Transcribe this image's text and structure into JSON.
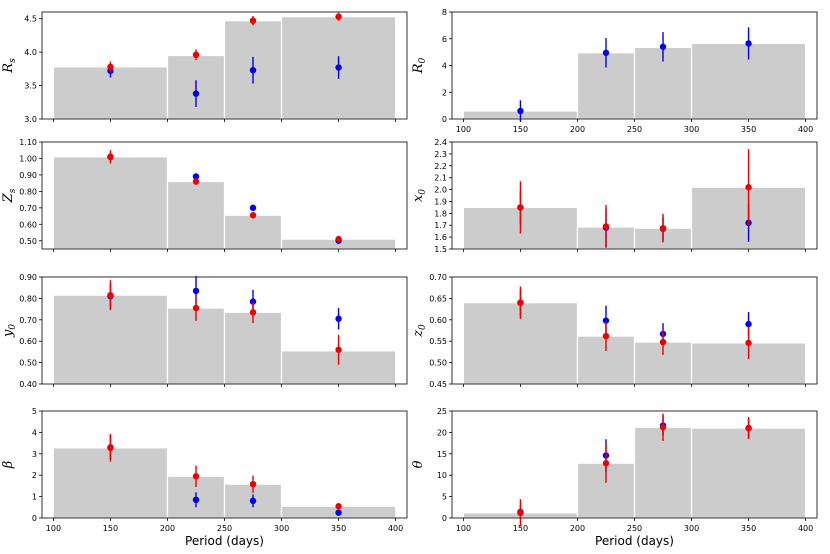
{
  "chart_data": [
    {
      "type": "bar",
      "ylabel": "R",
      "ylabel_sub": "s",
      "ylim": [
        3.0,
        4.6
      ],
      "yticks": [
        3.0,
        3.5,
        4.0,
        4.5
      ],
      "xlim": [
        90,
        410
      ],
      "xticks": [],
      "bins": [
        {
          "x0": 100,
          "x1": 200,
          "value": 3.78
        },
        {
          "x0": 200,
          "x1": 250,
          "value": 3.95
        },
        {
          "x0": 250,
          "x1": 300,
          "value": 4.47
        },
        {
          "x0": 300,
          "x1": 400,
          "value": 4.53
        }
      ],
      "series": [
        {
          "name": "blue",
          "color": "#0000ee",
          "points": [
            {
              "x": 150,
              "y": 3.72,
              "err": 0.1
            },
            {
              "x": 225,
              "y": 3.38,
              "err": 0.2
            },
            {
              "x": 275,
              "y": 3.73,
              "err": 0.2
            },
            {
              "x": 350,
              "y": 3.77,
              "err": 0.17
            }
          ]
        },
        {
          "name": "red",
          "color": "#ee0000",
          "points": [
            {
              "x": 150,
              "y": 3.78,
              "err": 0.08
            },
            {
              "x": 225,
              "y": 3.96,
              "err": 0.08
            },
            {
              "x": 275,
              "y": 4.47,
              "err": 0.07
            },
            {
              "x": 350,
              "y": 4.53,
              "err": 0.06
            }
          ]
        }
      ]
    },
    {
      "type": "bar",
      "ylabel": "R",
      "ylabel_sub": "0",
      "ylim": [
        0,
        8
      ],
      "yticks": [
        0,
        2,
        4,
        6,
        8
      ],
      "xlim": [
        90,
        410
      ],
      "xticks": [
        100,
        150,
        200,
        250,
        300,
        350,
        400
      ],
      "bins": [
        {
          "x0": 100,
          "x1": 200,
          "value": 0.6
        },
        {
          "x0": 200,
          "x1": 250,
          "value": 4.95
        },
        {
          "x0": 250,
          "x1": 300,
          "value": 5.35
        },
        {
          "x0": 300,
          "x1": 400,
          "value": 5.65
        }
      ],
      "series": [
        {
          "name": "blue",
          "color": "#0000ee",
          "points": [
            {
              "x": 150,
              "y": 0.6,
              "err": 0.8
            },
            {
              "x": 225,
              "y": 4.95,
              "err": 1.1
            },
            {
              "x": 275,
              "y": 5.4,
              "err": 1.1
            },
            {
              "x": 350,
              "y": 5.65,
              "err": 1.2
            }
          ]
        }
      ]
    },
    {
      "type": "bar",
      "ylabel": "Z",
      "ylabel_sub": "s",
      "ylim": [
        0.45,
        1.1
      ],
      "yticks": [
        0.5,
        0.6,
        0.7,
        0.8,
        0.9,
        1.0,
        1.1
      ],
      "xlim": [
        90,
        410
      ],
      "xticks": [],
      "bins": [
        {
          "x0": 100,
          "x1": 200,
          "value": 1.01
        },
        {
          "x0": 200,
          "x1": 250,
          "value": 0.86
        },
        {
          "x0": 250,
          "x1": 300,
          "value": 0.655
        },
        {
          "x0": 300,
          "x1": 400,
          "value": 0.51
        }
      ],
      "series": [
        {
          "name": "blue",
          "color": "#0000ee",
          "points": [
            {
              "x": 150,
              "y": 1.01,
              "err": 0.03
            },
            {
              "x": 225,
              "y": 0.89,
              "err": 0.02
            },
            {
              "x": 275,
              "y": 0.7,
              "err": 0.01
            },
            {
              "x": 350,
              "y": 0.5,
              "err": 0.01
            }
          ]
        },
        {
          "name": "red",
          "color": "#ee0000",
          "points": [
            {
              "x": 150,
              "y": 1.01,
              "err": 0.04
            },
            {
              "x": 225,
              "y": 0.86,
              "err": 0.02
            },
            {
              "x": 275,
              "y": 0.655,
              "err": 0.01
            },
            {
              "x": 350,
              "y": 0.51,
              "err": 0.01
            }
          ]
        }
      ]
    },
    {
      "type": "bar",
      "ylabel": "x",
      "ylabel_sub": "0",
      "ylim": [
        1.5,
        2.4
      ],
      "yticks": [
        1.5,
        1.6,
        1.7,
        1.8,
        1.9,
        2.0,
        2.1,
        2.2,
        2.3,
        2.4
      ],
      "xlim": [
        90,
        410
      ],
      "xticks": [],
      "bins": [
        {
          "x0": 100,
          "x1": 200,
          "value": 1.85
        },
        {
          "x0": 200,
          "x1": 250,
          "value": 1.685
        },
        {
          "x0": 250,
          "x1": 300,
          "value": 1.675
        },
        {
          "x0": 300,
          "x1": 400,
          "value": 2.02
        }
      ],
      "series": [
        {
          "name": "blue",
          "color": "#0000ee",
          "points": [
            {
              "x": 150,
              "y": 1.85,
              "err": 0.14
            },
            {
              "x": 225,
              "y": 1.68,
              "err": 0.16
            },
            {
              "x": 275,
              "y": 1.67,
              "err": 0.1
            },
            {
              "x": 350,
              "y": 1.72,
              "err": 0.16
            }
          ]
        },
        {
          "name": "red",
          "color": "#ee0000",
          "points": [
            {
              "x": 150,
              "y": 1.85,
              "err": 0.22
            },
            {
              "x": 225,
              "y": 1.69,
              "err": 0.18
            },
            {
              "x": 275,
              "y": 1.675,
              "err": 0.12
            },
            {
              "x": 350,
              "y": 2.02,
              "err": 0.32
            }
          ]
        }
      ]
    },
    {
      "type": "bar",
      "ylabel": "y",
      "ylabel_sub": "0",
      "ylim": [
        0.4,
        0.9
      ],
      "yticks": [
        0.4,
        0.5,
        0.6,
        0.7,
        0.8,
        0.9
      ],
      "xlim": [
        90,
        410
      ],
      "xticks": [],
      "bins": [
        {
          "x0": 100,
          "x1": 200,
          "value": 0.815
        },
        {
          "x0": 200,
          "x1": 250,
          "value": 0.755
        },
        {
          "x0": 250,
          "x1": 300,
          "value": 0.735
        },
        {
          "x0": 300,
          "x1": 400,
          "value": 0.555
        }
      ],
      "series": [
        {
          "name": "blue",
          "color": "#0000ee",
          "points": [
            {
              "x": 150,
              "y": 0.81,
              "err": 0.06
            },
            {
              "x": 225,
              "y": 0.835,
              "err": 0.07
            },
            {
              "x": 275,
              "y": 0.785,
              "err": 0.055
            },
            {
              "x": 350,
              "y": 0.705,
              "err": 0.05
            }
          ]
        },
        {
          "name": "red",
          "color": "#ee0000",
          "points": [
            {
              "x": 150,
              "y": 0.815,
              "err": 0.07
            },
            {
              "x": 225,
              "y": 0.755,
              "err": 0.06
            },
            {
              "x": 275,
              "y": 0.735,
              "err": 0.05
            },
            {
              "x": 350,
              "y": 0.56,
              "err": 0.07
            }
          ]
        }
      ]
    },
    {
      "type": "bar",
      "ylabel": "z",
      "ylabel_sub": "0",
      "ylim": [
        0.45,
        0.7
      ],
      "yticks": [
        0.45,
        0.5,
        0.55,
        0.6,
        0.65,
        0.7
      ],
      "xlim": [
        90,
        410
      ],
      "xticks": [],
      "bins": [
        {
          "x0": 100,
          "x1": 200,
          "value": 0.64
        },
        {
          "x0": 200,
          "x1": 250,
          "value": 0.562
        },
        {
          "x0": 250,
          "x1": 300,
          "value": 0.548
        },
        {
          "x0": 300,
          "x1": 400,
          "value": 0.546
        }
      ],
      "series": [
        {
          "name": "blue",
          "color": "#0000ee",
          "points": [
            {
              "x": 150,
              "y": 0.64,
              "err": 0.03
            },
            {
              "x": 225,
              "y": 0.598,
              "err": 0.035
            },
            {
              "x": 275,
              "y": 0.567,
              "err": 0.025
            },
            {
              "x": 350,
              "y": 0.59,
              "err": 0.028
            }
          ]
        },
        {
          "name": "red",
          "color": "#ee0000",
          "points": [
            {
              "x": 150,
              "y": 0.64,
              "err": 0.038
            },
            {
              "x": 225,
              "y": 0.562,
              "err": 0.035
            },
            {
              "x": 275,
              "y": 0.548,
              "err": 0.03
            },
            {
              "x": 350,
              "y": 0.546,
              "err": 0.038
            }
          ]
        }
      ]
    },
    {
      "type": "bar",
      "ylabel": "β",
      "ylabel_sub": "",
      "ylim": [
        0,
        5
      ],
      "yticks": [
        0,
        1,
        2,
        3,
        4,
        5
      ],
      "xlim": [
        90,
        410
      ],
      "xticks": [
        100,
        150,
        200,
        250,
        300,
        350,
        400
      ],
      "xlabel": "Period (days)",
      "bins": [
        {
          "x0": 100,
          "x1": 200,
          "value": 3.28
        },
        {
          "x0": 200,
          "x1": 250,
          "value": 1.95
        },
        {
          "x0": 250,
          "x1": 300,
          "value": 1.58
        },
        {
          "x0": 300,
          "x1": 400,
          "value": 0.55
        }
      ],
      "series": [
        {
          "name": "blue",
          "color": "#0000ee",
          "points": [
            {
              "x": 150,
              "y": 3.3,
              "err": 0.55
            },
            {
              "x": 225,
              "y": 0.85,
              "err": 0.35
            },
            {
              "x": 275,
              "y": 0.8,
              "err": 0.3
            },
            {
              "x": 350,
              "y": 0.25,
              "err": 0.1
            }
          ]
        },
        {
          "name": "red",
          "color": "#ee0000",
          "points": [
            {
              "x": 150,
              "y": 3.28,
              "err": 0.65
            },
            {
              "x": 225,
              "y": 1.95,
              "err": 0.5
            },
            {
              "x": 275,
              "y": 1.58,
              "err": 0.4
            },
            {
              "x": 350,
              "y": 0.55,
              "err": 0.1
            }
          ]
        }
      ]
    },
    {
      "type": "bar",
      "ylabel": "θ",
      "ylabel_sub": "",
      "ylim": [
        0,
        25
      ],
      "yticks": [
        0,
        5,
        10,
        15,
        20,
        25
      ],
      "xlim": [
        90,
        410
      ],
      "xticks": [
        100,
        150,
        200,
        250,
        300,
        350,
        400
      ],
      "xlabel": "Period (days)",
      "bins": [
        {
          "x0": 100,
          "x1": 200,
          "value": 1.2
        },
        {
          "x0": 200,
          "x1": 250,
          "value": 12.8
        },
        {
          "x0": 250,
          "x1": 300,
          "value": 21.2
        },
        {
          "x0": 300,
          "x1": 400,
          "value": 21.0
        }
      ],
      "series": [
        {
          "name": "blue",
          "color": "#0000ee",
          "points": [
            {
              "x": 150,
              "y": 1.4,
              "err": 1.6
            },
            {
              "x": 225,
              "y": 14.6,
              "err": 3.8
            },
            {
              "x": 275,
              "y": 21.6,
              "err": 2.3
            },
            {
              "x": 350,
              "y": 21.0,
              "err": 2.3
            }
          ]
        },
        {
          "name": "red",
          "color": "#ee0000",
          "points": [
            {
              "x": 150,
              "y": 1.2,
              "err": 3.2
            },
            {
              "x": 225,
              "y": 12.8,
              "err": 4.6
            },
            {
              "x": 275,
              "y": 21.2,
              "err": 3.2
            },
            {
              "x": 350,
              "y": 21.0,
              "err": 2.6
            }
          ]
        }
      ]
    }
  ]
}
